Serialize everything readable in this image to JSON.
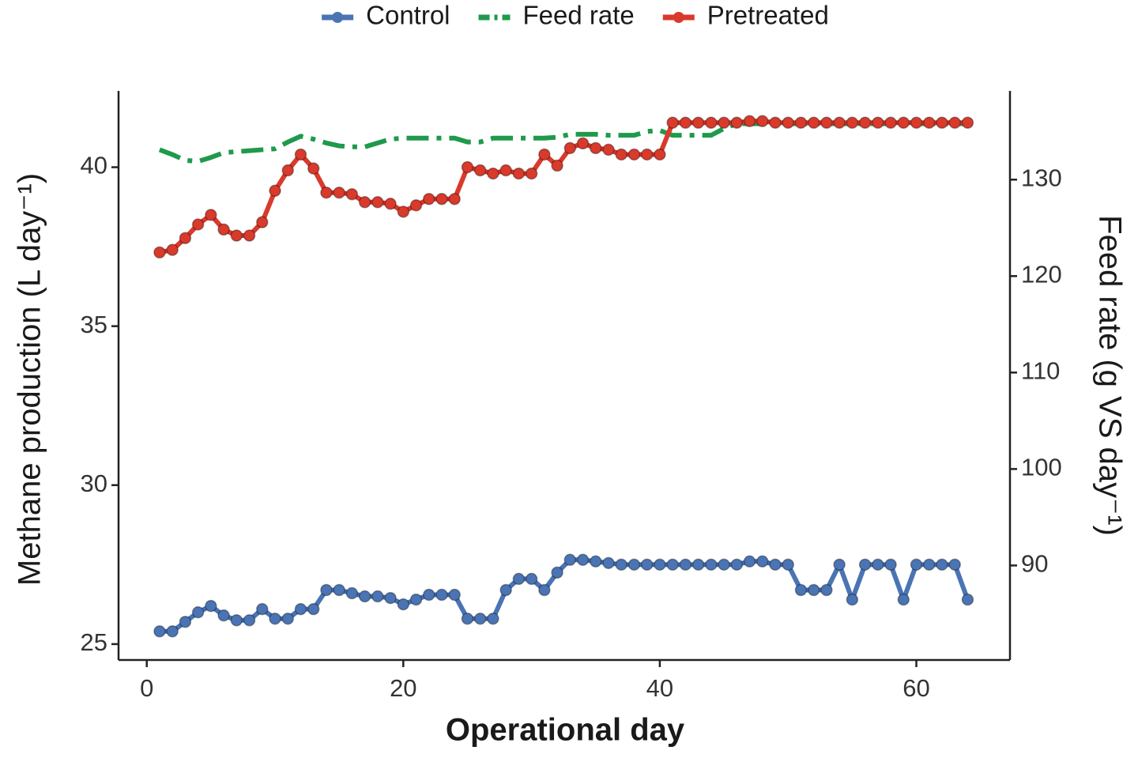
{
  "chart_data": {
    "type": "line",
    "x": [
      1,
      2,
      3,
      4,
      5,
      6,
      7,
      8,
      9,
      10,
      11,
      12,
      13,
      14,
      15,
      16,
      17,
      18,
      19,
      20,
      21,
      22,
      23,
      24,
      25,
      26,
      27,
      28,
      29,
      30,
      31,
      32,
      33,
      34,
      35,
      36,
      37,
      38,
      39,
      40,
      41,
      42,
      43,
      44,
      45,
      46,
      47,
      48,
      49,
      50,
      51,
      52,
      53,
      54,
      55,
      56,
      57,
      58,
      59,
      60,
      61,
      62,
      63,
      64
    ],
    "xlabel": "Operational day",
    "ylabel": "Methane production (L day⁻¹)",
    "y2label": "Feed rate (g VS day⁻¹)",
    "xlim": [
      -2.2,
      67.3
    ],
    "xticks": [
      0,
      20,
      40,
      60
    ],
    "ylim": [
      24.5,
      42.4
    ],
    "yticks": [
      25,
      30,
      35,
      40
    ],
    "y2lim": [
      80.2,
      139.2
    ],
    "y2ticks": [
      90,
      100,
      110,
      120,
      130
    ],
    "grid": false,
    "legend": "top",
    "series": [
      {
        "name": "Control",
        "color": "#4a74b4",
        "axis": "y",
        "markers": true,
        "values": [
          25.4,
          25.4,
          25.7,
          26.0,
          26.2,
          25.9,
          25.75,
          25.75,
          26.1,
          25.8,
          25.8,
          26.1,
          26.1,
          26.7,
          26.7,
          26.6,
          26.5,
          26.5,
          26.45,
          26.25,
          26.4,
          26.55,
          26.55,
          26.55,
          25.8,
          25.8,
          25.8,
          26.7,
          27.05,
          27.05,
          26.7,
          27.25,
          27.65,
          27.65,
          27.6,
          27.55,
          27.5,
          27.5,
          27.5,
          27.5,
          27.5,
          27.5,
          27.5,
          27.5,
          27.5,
          27.5,
          27.6,
          27.6,
          27.5,
          27.5,
          26.7,
          26.7,
          26.7,
          27.5,
          26.4,
          27.5,
          27.5,
          27.5,
          26.4,
          27.5,
          27.5,
          27.5,
          27.5,
          26.4
        ]
      },
      {
        "name": "Feed rate",
        "color": "#1f9a4c",
        "axis": "y2",
        "markers": false,
        "dash": "dashdot",
        "values": [
          133.1,
          132.6,
          132.0,
          131.9,
          132.3,
          132.8,
          132.9,
          133.0,
          133.1,
          133.2,
          133.9,
          134.5,
          134.2,
          133.8,
          133.5,
          133.4,
          133.4,
          133.8,
          134.2,
          134.3,
          134.3,
          134.3,
          134.3,
          134.3,
          133.9,
          133.9,
          134.3,
          134.3,
          134.3,
          134.3,
          134.3,
          134.4,
          134.7,
          134.7,
          134.7,
          134.6,
          134.6,
          134.6,
          135.0,
          135.1,
          134.6,
          134.6,
          134.6,
          134.6,
          135.3,
          135.8,
          135.8,
          135.8,
          135.8,
          135.8,
          135.8,
          135.8,
          135.8,
          135.8,
          135.8,
          135.8,
          135.8,
          135.8,
          135.8,
          135.8,
          135.8,
          135.8,
          135.8,
          135.8
        ]
      },
      {
        "name": "Pretreated",
        "color": "#d93a2b",
        "axis": "y",
        "markers": true,
        "values": [
          37.32,
          37.4,
          37.77,
          38.2,
          38.5,
          38.04,
          37.85,
          37.85,
          38.27,
          39.26,
          39.9,
          40.4,
          39.96,
          39.2,
          39.2,
          39.15,
          38.9,
          38.9,
          38.85,
          38.6,
          38.8,
          39.0,
          39.0,
          39.0,
          40.0,
          39.9,
          39.8,
          39.9,
          39.8,
          39.8,
          40.4,
          40.05,
          40.6,
          40.75,
          40.6,
          40.55,
          40.4,
          40.4,
          40.4,
          40.4,
          41.4,
          41.4,
          41.4,
          41.4,
          41.4,
          41.4,
          41.45,
          41.45,
          41.4,
          41.4,
          41.4,
          41.4,
          41.4,
          41.4,
          41.4,
          41.4,
          41.4,
          41.4,
          41.4,
          41.4,
          41.4,
          41.4,
          41.4,
          41.4
        ]
      }
    ]
  }
}
